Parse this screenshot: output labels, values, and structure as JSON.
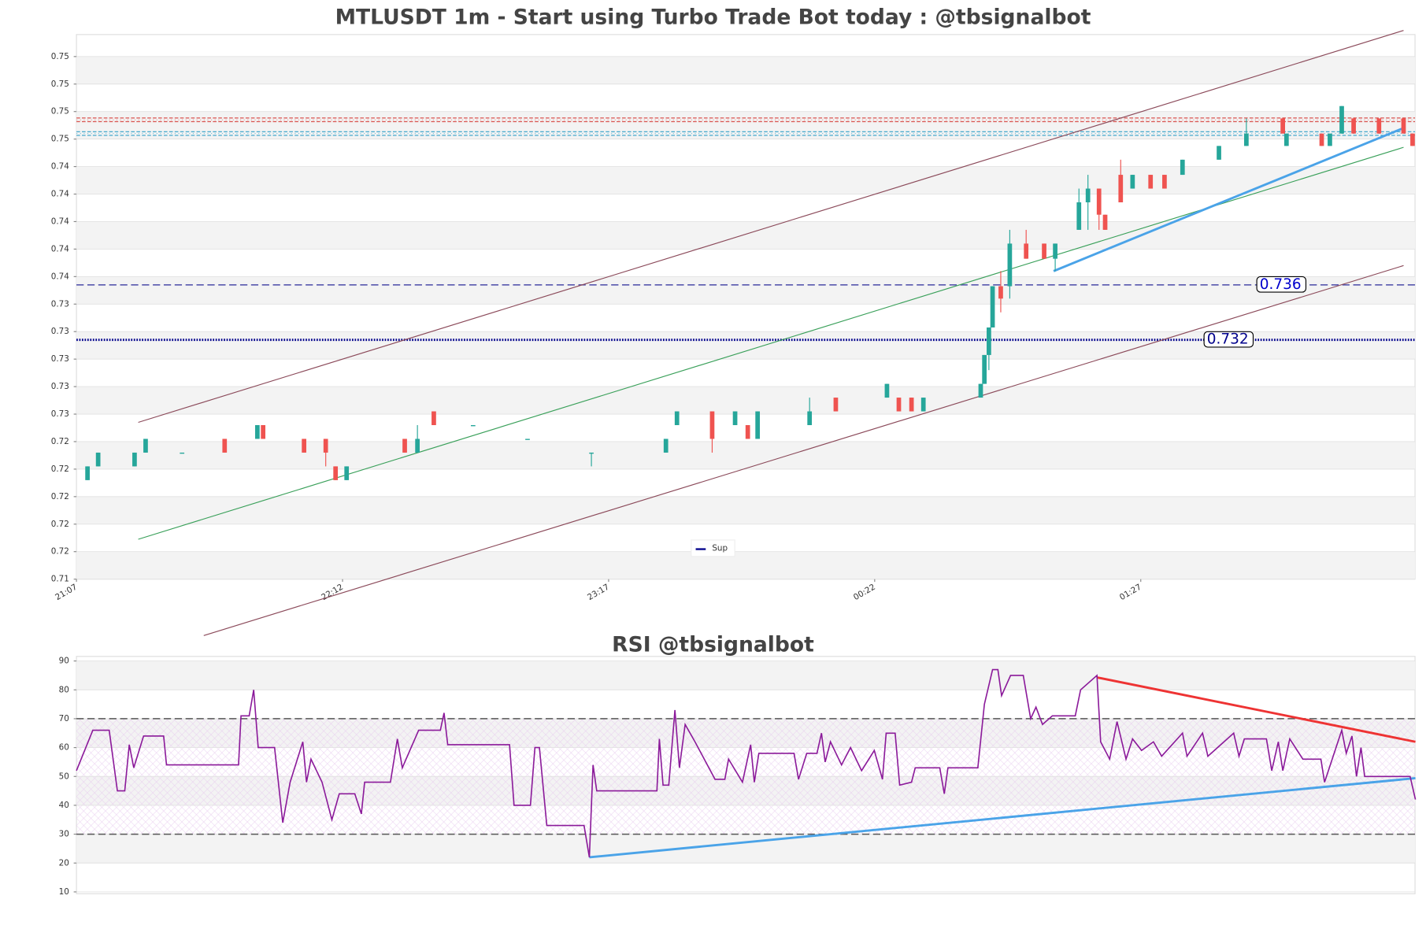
{
  "chart_data": [
    {
      "type": "candlestick",
      "title": "MTLUSDT 1m - Start using Turbo Trade Bot today : @tbsignalbot",
      "x": [
        2.7,
        5.3,
        14.2,
        16.9,
        25.8,
        36.2,
        44.2,
        45.6,
        55.6,
        60.9,
        63.3,
        66,
        80.2,
        83.3,
        87.3,
        96.9,
        110.2,
        125.8,
        144,
        146.7,
        155.3,
        160.9,
        164,
        166.4,
        179.1,
        185.5,
        198,
        200.9,
        204,
        206.9,
        220.9,
        221.8,
        222.9,
        223.8,
        225.8,
        228,
        232,
        236.4,
        239.1,
        244.9,
        247.1,
        249.8,
        251.3,
        255.1,
        258,
        262.4,
        265.8,
        270.2,
        279.1,
        285.8,
        294.7,
        295.6,
        304.2,
        306.2,
        309.1,
        312,
        318.2,
        324.2,
        326.4
      ],
      "open": [
        0.7218,
        0.7228,
        0.7228,
        0.7238,
        0.7238,
        0.7248,
        0.7248,
        0.7258,
        0.7248,
        0.7248,
        0.7228,
        0.7218,
        0.7248,
        0.7238,
        0.7268,
        0.7258,
        0.7248,
        0.7238,
        0.7238,
        0.7258,
        0.7268,
        0.7258,
        0.7258,
        0.7248,
        0.7258,
        0.7278,
        0.7278,
        0.7278,
        0.7278,
        0.7268,
        0.7278,
        0.7288,
        0.7309,
        0.7329,
        0.7359,
        0.7359,
        0.739,
        0.739,
        0.7379,
        0.74,
        0.742,
        0.743,
        0.7411,
        0.744,
        0.743,
        0.744,
        0.744,
        0.744,
        0.7451,
        0.7461,
        0.7481,
        0.7461,
        0.747,
        0.7461,
        0.747,
        0.7481,
        0.7481,
        0.7481,
        0.747
      ],
      "high": [
        0.7228,
        0.7238,
        0.7238,
        0.7248,
        0.7238,
        0.7248,
        0.7258,
        0.7258,
        0.7248,
        0.7248,
        0.7228,
        0.7228,
        0.7248,
        0.7258,
        0.7268,
        0.7258,
        0.7248,
        0.7238,
        0.7248,
        0.7268,
        0.7268,
        0.7268,
        0.7258,
        0.7268,
        0.7278,
        0.7278,
        0.7288,
        0.7278,
        0.7278,
        0.7278,
        0.7288,
        0.7309,
        0.7329,
        0.7359,
        0.737,
        0.74,
        0.74,
        0.739,
        0.739,
        0.743,
        0.744,
        0.743,
        0.7411,
        0.7451,
        0.744,
        0.744,
        0.744,
        0.7451,
        0.7461,
        0.7481,
        0.7481,
        0.747,
        0.747,
        0.747,
        0.749,
        0.7481,
        0.7481,
        0.7481,
        0.747
      ],
      "low": [
        0.7218,
        0.7228,
        0.7228,
        0.7238,
        0.7238,
        0.7238,
        0.7248,
        0.7248,
        0.7238,
        0.7228,
        0.7218,
        0.7218,
        0.7238,
        0.7238,
        0.7258,
        0.7258,
        0.7248,
        0.7228,
        0.7238,
        0.7258,
        0.7238,
        0.7258,
        0.7248,
        0.7248,
        0.7258,
        0.7268,
        0.7278,
        0.7268,
        0.7268,
        0.7268,
        0.7278,
        0.7288,
        0.7298,
        0.7329,
        0.734,
        0.735,
        0.7379,
        0.7379,
        0.737,
        0.74,
        0.74,
        0.74,
        0.74,
        0.742,
        0.743,
        0.743,
        0.743,
        0.744,
        0.7451,
        0.7461,
        0.747,
        0.7461,
        0.7461,
        0.7461,
        0.747,
        0.747,
        0.747,
        0.747,
        0.7461
      ],
      "close": [
        0.7228,
        0.7238,
        0.7238,
        0.7248,
        0.7238,
        0.7238,
        0.7258,
        0.7248,
        0.7238,
        0.7238,
        0.7218,
        0.7228,
        0.7238,
        0.7248,
        0.7258,
        0.7258,
        0.7248,
        0.7238,
        0.7248,
        0.7268,
        0.7248,
        0.7268,
        0.7248,
        0.7268,
        0.7268,
        0.7268,
        0.7288,
        0.7268,
        0.7268,
        0.7278,
        0.7288,
        0.7309,
        0.7329,
        0.7359,
        0.735,
        0.739,
        0.7379,
        0.7379,
        0.739,
        0.742,
        0.743,
        0.7411,
        0.74,
        0.742,
        0.744,
        0.743,
        0.743,
        0.7451,
        0.7461,
        0.747,
        0.747,
        0.747,
        0.7461,
        0.747,
        0.749,
        0.747,
        0.747,
        0.747,
        0.7461
      ],
      "up_color": "#26a69a",
      "down_color": "#ef5350",
      "xlim": [
        0,
        327
      ],
      "xticks": [
        {
          "value": 0,
          "label": "21:07"
        },
        {
          "value": 65,
          "label": "22:12"
        },
        {
          "value": 130,
          "label": "23:17"
        },
        {
          "value": 195,
          "label": "00:22"
        },
        {
          "value": 260,
          "label": "01:27"
        }
      ],
      "ylim": [
        0.7146,
        0.7542
      ],
      "yticks": [
        {
          "value": 0.7146,
          "label": "0.71"
        },
        {
          "value": 0.7166,
          "label": "0.72"
        },
        {
          "value": 0.7186,
          "label": "0.72"
        },
        {
          "value": 0.7206,
          "label": "0.72"
        },
        {
          "value": 0.7226,
          "label": "0.72"
        },
        {
          "value": 0.7246,
          "label": "0.72"
        },
        {
          "value": 0.7266,
          "label": "0.73"
        },
        {
          "value": 0.7286,
          "label": "0.73"
        },
        {
          "value": 0.7306,
          "label": "0.73"
        },
        {
          "value": 0.7326,
          "label": "0.73"
        },
        {
          "value": 0.7346,
          "label": "0.73"
        },
        {
          "value": 0.7366,
          "label": "0.74"
        },
        {
          "value": 0.7386,
          "label": "0.74"
        },
        {
          "value": 0.7406,
          "label": "0.74"
        },
        {
          "value": 0.7426,
          "label": "0.74"
        },
        {
          "value": 0.7446,
          "label": "0.74"
        },
        {
          "value": 0.7466,
          "label": "0.75"
        },
        {
          "value": 0.7486,
          "label": "0.75"
        },
        {
          "value": 0.7506,
          "label": "0.75"
        },
        {
          "value": 0.7526,
          "label": "0.75"
        }
      ],
      "grid": true,
      "hlines": [
        {
          "value": 0.736,
          "color": "#4a4aa8",
          "style": "dashed"
        },
        {
          "value": 0.732,
          "name": "Sup",
          "color": "#00008b",
          "style": "dotted"
        }
      ],
      "resistance": [
        {
          "value": 0.748,
          "color": "#d9534f"
        },
        {
          "value": 0.747,
          "color": "#31a0c8"
        }
      ],
      "trendlines": [
        {
          "x": [
            15.1,
            324.2
          ],
          "y": [
            0.726,
            0.7545
          ],
          "color": "#8b4a5a",
          "width": 1
        },
        {
          "x": [
            31.1,
            324.2
          ],
          "y": [
            0.7105,
            0.7374
          ],
          "color": "#8b4a5a",
          "width": 1
        },
        {
          "x": [
            15.1,
            324.2
          ],
          "y": [
            0.7175,
            0.746
          ],
          "color": "#3aa05a",
          "width": 1
        },
        {
          "x": [
            238.7,
            324.2
          ],
          "y": [
            0.737,
            0.7474
          ],
          "color": "#4aa3e8",
          "width": 2.5
        }
      ]
    },
    {
      "type": "line",
      "title": "RSI @tbsignalbot",
      "color": "#8b1a9a",
      "x": [
        0,
        4,
        8,
        10,
        11.8,
        12.9,
        14,
        16.4,
        21.3,
        22,
        39.6,
        40.2,
        42.2,
        43.3,
        44.4,
        48.4,
        50.4,
        52.2,
        55.3,
        56.2,
        57.3,
        60,
        62.4,
        64.2,
        68,
        69.6,
        70.4,
        76.7,
        78.4,
        79.6,
        83.6,
        88.9,
        89.8,
        90.7,
        105.8,
        106.9,
        110.9,
        112,
        113.1,
        114.9,
        124,
        125.3,
        126.2,
        127.1,
        141.8,
        142.4,
        143.3,
        144.7,
        146.2,
        147.3,
        148.7,
        151.1,
        156,
        158.4,
        159.3,
        162.7,
        164.7,
        165.6,
        166.7,
        175.3,
        176.4,
        178.4,
        180.9,
        182,
        182.9,
        184.2,
        186.9,
        189.1,
        191.8,
        194.9,
        196.9,
        197.8,
        200,
        201.1,
        204,
        204.9,
        210.9,
        212,
        212.9,
        220.2,
        221.8,
        223.8,
        225.1,
        226,
        228.2,
        231.3,
        233.1,
        234.4,
        236,
        238.4,
        244,
        245.3,
        249.3,
        250.2,
        252.4,
        254.2,
        256.4,
        258,
        260.2,
        263.1,
        265.1,
        270.2,
        271.3,
        275.1,
        276.4,
        282.7,
        284,
        285.3,
        290.7,
        292,
        293.6,
        294.7,
        296.4,
        299.6,
        304,
        304.9,
        309.1,
        310.2,
        311.6,
        312.7,
        313.8,
        314.7,
        325.8,
        327.1
      ],
      "values": [
        52,
        66,
        66,
        45,
        45,
        61,
        53,
        64,
        64,
        54,
        54,
        71,
        71,
        80,
        60,
        60,
        34,
        48,
        62,
        48,
        56,
        48,
        35,
        44,
        44,
        37,
        48,
        48,
        63,
        53,
        66,
        66,
        72,
        61,
        61,
        40,
        40,
        60,
        60,
        33,
        33,
        22,
        54,
        45,
        45,
        63,
        47,
        47,
        73,
        53,
        68,
        62,
        49,
        49,
        56,
        48,
        61,
        48,
        58,
        58,
        49,
        58,
        58,
        65,
        55,
        62,
        54,
        60,
        52,
        59,
        49,
        65,
        65,
        47,
        48,
        53,
        53,
        44,
        53,
        53,
        75,
        87,
        87,
        78,
        85,
        85,
        70,
        74,
        68,
        71,
        71,
        80,
        85,
        62,
        56,
        69,
        56,
        63,
        59,
        62,
        57,
        65,
        57,
        65,
        57,
        65,
        57,
        63,
        63,
        52,
        62,
        52,
        63,
        56,
        56,
        48,
        66,
        58,
        64,
        50,
        60,
        50,
        50,
        42
      ],
      "xlim": [
        0,
        327
      ],
      "ylim": [
        10,
        90
      ],
      "yticks": [
        10,
        20,
        30,
        40,
        50,
        60,
        70,
        80,
        90
      ],
      "grid": true,
      "hlines": [
        {
          "value": 30,
          "color": "#555",
          "style": "dashed"
        },
        {
          "value": 70,
          "color": "#555",
          "style": "dashed"
        }
      ],
      "trendlines": [
        {
          "x": [
            249.3,
            327.1
          ],
          "y": [
            84.3,
            62
          ],
          "color": "#ee3333",
          "width": 2.5
        },
        {
          "x": [
            125.3,
            327.1
          ],
          "y": [
            22,
            49.4
          ],
          "color": "#4aa3e8",
          "width": 2.5
        }
      ]
    }
  ]
}
